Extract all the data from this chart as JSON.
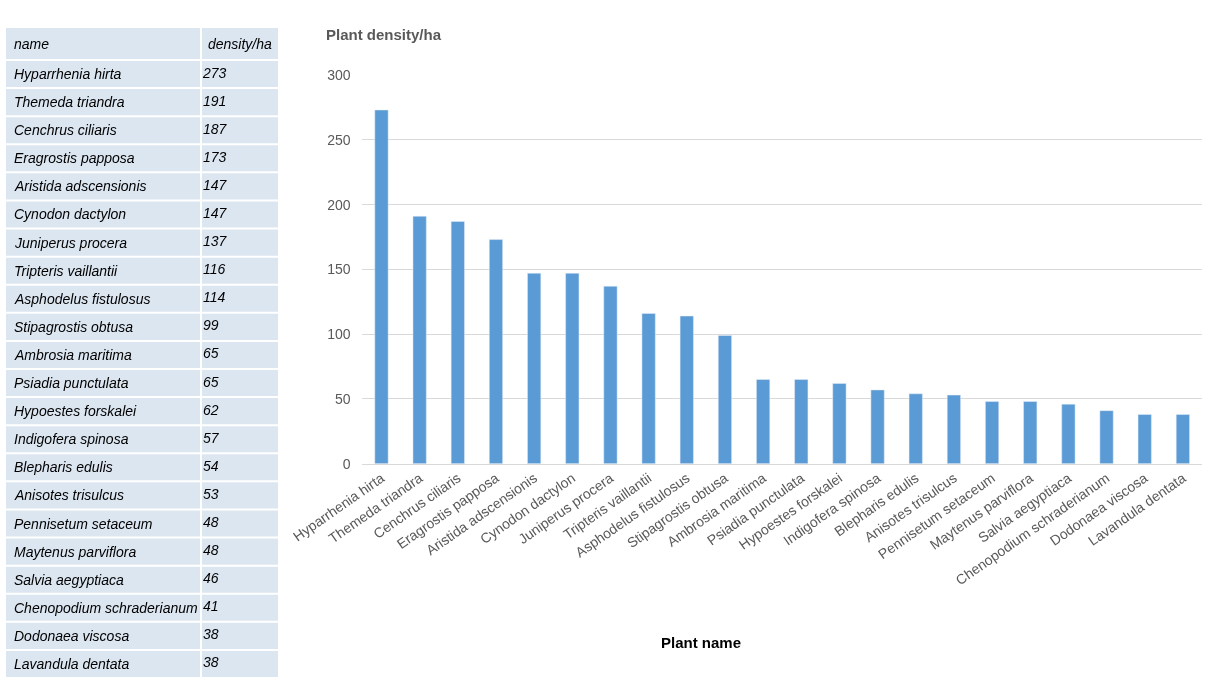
{
  "chart_data": [
    {
      "type": "other",
      "annotations": [
        "name",
        "density/ha"
      ],
      "data_labels": true,
      "categories": [
        "Hyparrhenia hirta",
        "Themeda triandra",
        "Cenchrus ciliaris",
        "Eragrostis papposa",
        "Aristida adscensionis",
        "Cynodon dactylon",
        "Juniperus procera",
        "Tripteris vaillantii",
        "Asphodelus fistulosus",
        "Stipagrostis obtusa",
        "Ambrosia maritima",
        "Psiadia punctulata",
        "Hypoestes forskalei",
        "Indigofera spinosa",
        "Blepharis edulis",
        "Anisotes trisulcus",
        "Pennisetum setaceum",
        "Maytenus parviflora",
        "Salvia aegyptiaca",
        "Chenopodium schraderianum",
        "Dodonaea viscosa",
        "Lavandula dentata"
      ],
      "values": [
        273,
        191,
        187,
        173,
        147,
        147,
        137,
        116,
        114,
        99,
        65,
        65,
        62,
        57,
        54,
        53,
        48,
        48,
        46,
        41,
        38,
        38
      ]
    },
    {
      "type": "bar",
      "title": "Plant density/ha",
      "xlabel": "Plant name",
      "categories": [
        "Hyparrhenia hirta",
        "Themeda triandra",
        "Cenchrus ciliaris",
        "Eragrostis papposa",
        "Aristida adscensionis",
        "Cynodon dactylon",
        "Juniperus procera",
        "Tripteris vaillantii",
        "Asphodelus fistulosus",
        "Stipagrostis obtusa",
        "Ambrosia maritima",
        "Psiadia punctulata",
        "Hypoestes forskalei",
        "Indigofera spinosa",
        "Blepharis edulis",
        "Anisotes trisulcus",
        "Pennisetum setaceum",
        "Maytenus parviflora",
        "Salvia aegyptiaca",
        "Chenopodium schraderianum",
        "Dodonaea viscosa",
        "Lavandula dentata"
      ],
      "values": [
        273,
        191,
        187,
        173,
        147,
        147,
        137,
        116,
        114,
        99,
        65,
        65,
        62,
        57,
        54,
        53,
        48,
        48,
        46,
        41,
        38,
        38
      ],
      "color": "#5b9bd5",
      "ylim": [
        0,
        300
      ],
      "yticks": [
        0,
        50,
        100,
        150,
        200,
        250,
        300
      ],
      "grid": "y"
    }
  ]
}
